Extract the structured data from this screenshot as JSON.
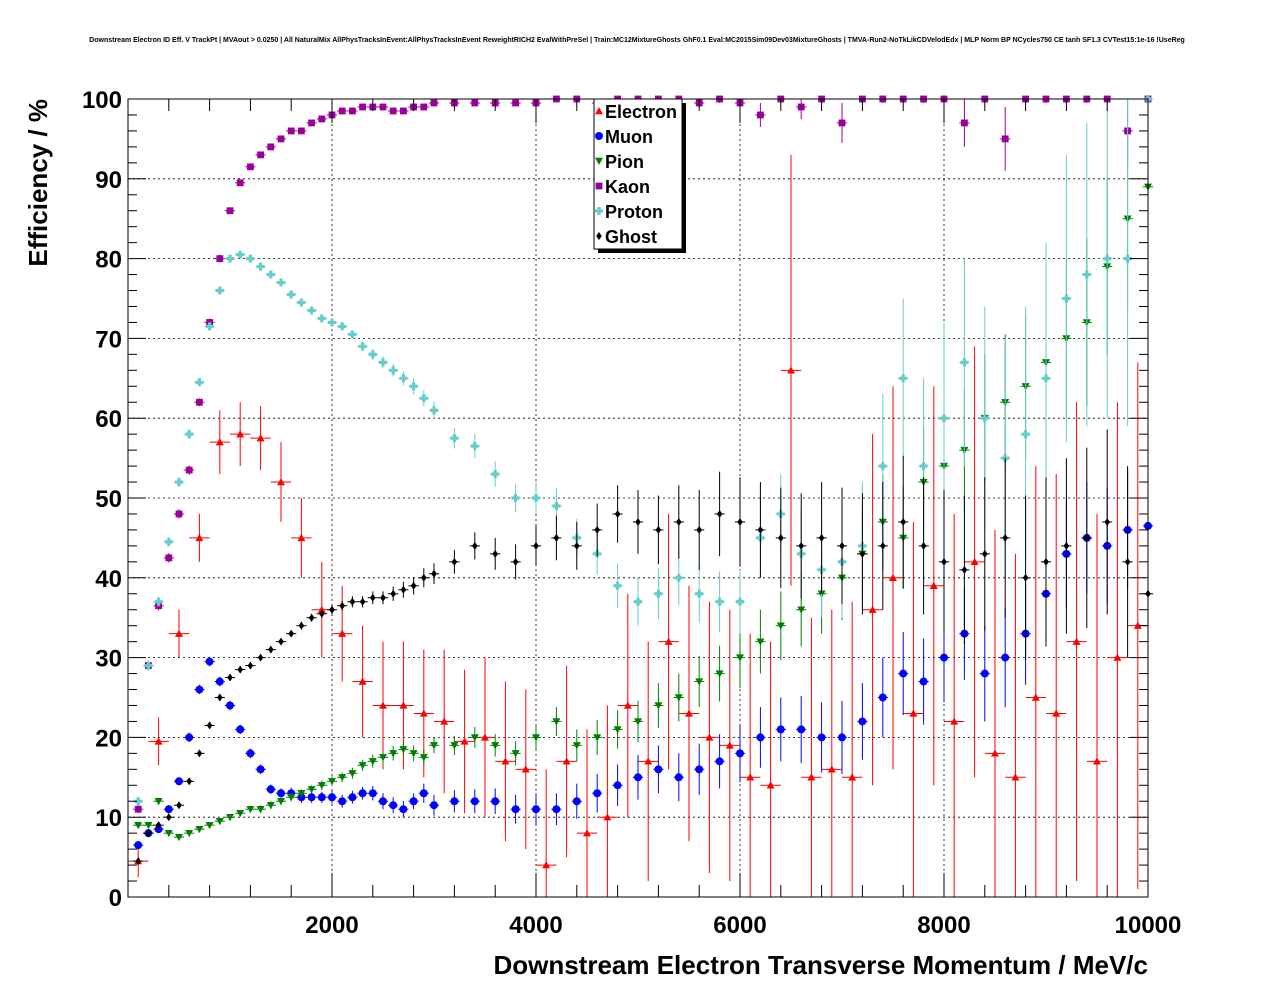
{
  "chart_data": {
    "type": "scatter",
    "title": "Downstream Electron ID Eff. V TrackPt | MVAout > 0.0250 | All NaturalMix AllPhysTracksInEvent:AllPhysTracksInEvent ReweightRICH2 EvalWithPreSel | Train:MC12MixtureGhosts GhF0.1 Eval:MC2015Sim09Dev03MixtureGhosts | TMVA-Run2-NoTkLikCDVelodEdx | MLP Norm BP NCycles750 CE tanh SF1.3 CVTest15:1e-16 !UseReg",
    "xlabel": "Downstream Electron Transverse Momentum / MeV/c",
    "ylabel": "Efficiency / %",
    "xlim": [
      0,
      10000
    ],
    "ylim": [
      0,
      100
    ],
    "x_ticks": [
      "2000",
      "4000",
      "6000",
      "8000",
      "10000"
    ],
    "y_ticks": [
      "0",
      "10",
      "20",
      "30",
      "40",
      "50",
      "60",
      "70",
      "80",
      "90",
      "100"
    ],
    "grid": true,
    "legend_position": "top-center",
    "series": [
      {
        "name": "Electron",
        "color": "#ff0000",
        "marker": "triangle-up",
        "x": [
          100,
          300,
          500,
          700,
          900,
          1100,
          1300,
          1500,
          1700,
          1900,
          2100,
          2300,
          2500,
          2700,
          2900,
          3100,
          3300,
          3500,
          3700,
          3900,
          4100,
          4300,
          4500,
          4700,
          4900,
          5100,
          5300,
          5500,
          5700,
          5900,
          6100,
          6300,
          6500,
          6700,
          6900,
          7100,
          7300,
          7500,
          7700,
          7900,
          8100,
          8300,
          8500,
          8700,
          8900,
          9100,
          9300,
          9500,
          9700,
          9900
        ],
        "y": [
          4.5,
          19.5,
          33,
          45,
          57,
          58,
          57.5,
          52,
          45,
          36,
          33,
          27,
          24,
          24,
          23,
          22,
          19.5,
          20,
          17,
          16,
          4,
          17,
          8,
          10,
          24,
          17,
          32,
          23,
          20,
          19,
          15,
          14,
          66,
          15,
          16,
          15,
          36,
          40,
          23,
          39,
          22,
          42,
          18,
          15,
          25,
          23,
          32,
          17,
          30,
          34
        ],
        "err": [
          2,
          3,
          3,
          3,
          4,
          4,
          4,
          5,
          5,
          6,
          6,
          7,
          8,
          8,
          8,
          9,
          9,
          10,
          10,
          10,
          12,
          12,
          13,
          14,
          14,
          15,
          16,
          16,
          17,
          17,
          18,
          18,
          27,
          20,
          20,
          22,
          22,
          24,
          24,
          25,
          26,
          27,
          28,
          28,
          29,
          30,
          30,
          31,
          32,
          33
        ]
      },
      {
        "name": "Muon",
        "color": "#0000ff",
        "marker": "circle",
        "x": [
          100,
          200,
          300,
          400,
          500,
          600,
          700,
          800,
          900,
          1000,
          1100,
          1200,
          1300,
          1400,
          1500,
          1600,
          1700,
          1800,
          1900,
          2000,
          2100,
          2200,
          2300,
          2400,
          2500,
          2600,
          2700,
          2800,
          2900,
          3000,
          3200,
          3400,
          3600,
          3800,
          4000,
          4200,
          4400,
          4600,
          4800,
          5000,
          5200,
          5400,
          5600,
          5800,
          6000,
          6200,
          6400,
          6600,
          6800,
          7000,
          7200,
          7400,
          7600,
          7800,
          8000,
          8200,
          8400,
          8600,
          8800,
          9000,
          9200,
          9400,
          9600,
          9800,
          10000
        ],
        "y": [
          6.5,
          8,
          8.5,
          11,
          14.5,
          20,
          26,
          29.5,
          27,
          24,
          21,
          18,
          16,
          13.5,
          13,
          13,
          12.5,
          12.5,
          12.5,
          12.5,
          12,
          12.5,
          13,
          13,
          12,
          11.5,
          11,
          12,
          13,
          11.5,
          12,
          12,
          12,
          11,
          11,
          11,
          12,
          13,
          14,
          15,
          16,
          15,
          16,
          17,
          18,
          20,
          21,
          21,
          20,
          20,
          22,
          25,
          28,
          27,
          30,
          33,
          28,
          30,
          33,
          38,
          43,
          45,
          44,
          46,
          46.5
        ],
        "err": [
          0.5,
          0.5,
          0.5,
          0.5,
          0.5,
          0.6,
          0.6,
          0.6,
          0.6,
          0.6,
          0.6,
          0.6,
          0.6,
          0.6,
          0.6,
          0.7,
          0.7,
          0.7,
          0.7,
          0.8,
          0.8,
          0.8,
          0.8,
          0.9,
          1,
          1,
          1,
          1,
          1.2,
          1.3,
          1.4,
          1.5,
          1.6,
          1.8,
          2,
          2,
          2.2,
          2.4,
          2.6,
          2.8,
          3,
          3,
          3.2,
          3.4,
          3.6,
          3.8,
          4,
          4.2,
          4.4,
          4.6,
          4.8,
          5,
          5.2,
          5.4,
          5.6,
          5.8,
          6,
          6.2,
          6.4,
          6.6,
          6.8,
          7,
          7.2,
          7.4,
          7.6
        ]
      },
      {
        "name": "Pion",
        "color": "#008000",
        "marker": "triangle-down",
        "x": [
          100,
          200,
          300,
          400,
          500,
          600,
          700,
          800,
          900,
          1000,
          1100,
          1200,
          1300,
          1400,
          1500,
          1600,
          1700,
          1800,
          1900,
          2000,
          2100,
          2200,
          2300,
          2400,
          2500,
          2600,
          2700,
          2800,
          2900,
          3000,
          3200,
          3400,
          3600,
          3800,
          4000,
          4200,
          4400,
          4600,
          4800,
          5000,
          5200,
          5400,
          5600,
          5800,
          6000,
          6200,
          6400,
          6600,
          6800,
          7000,
          7200,
          7400,
          7600,
          7800,
          8000,
          8200,
          8400,
          8600,
          8800,
          9000,
          9200,
          9400,
          9600,
          9800,
          10000
        ],
        "y": [
          9,
          9,
          12,
          8,
          7.5,
          8,
          8.5,
          9,
          9.5,
          10,
          10.5,
          11,
          11,
          11.5,
          12,
          12.5,
          13,
          13.5,
          14,
          14.5,
          15,
          15.5,
          16.5,
          17,
          17.5,
          18,
          18.5,
          18,
          17.5,
          19,
          19,
          20,
          19,
          18,
          20,
          22,
          19,
          20,
          21,
          22,
          24,
          25,
          27,
          28,
          30,
          32,
          34,
          36,
          38,
          40,
          43,
          47,
          45,
          52,
          54,
          56,
          60,
          62,
          64,
          67,
          70,
          72,
          79,
          85,
          89
        ],
        "err": [
          0.4,
          0.4,
          0.4,
          0.4,
          0.4,
          0.4,
          0.4,
          0.4,
          0.4,
          0.4,
          0.4,
          0.4,
          0.5,
          0.5,
          0.5,
          0.5,
          0.5,
          0.5,
          0.6,
          0.6,
          0.6,
          0.7,
          0.7,
          0.8,
          0.8,
          0.9,
          0.9,
          1,
          1,
          1,
          1.2,
          1.3,
          1.4,
          1.5,
          1.7,
          1.8,
          2,
          2.2,
          2.4,
          2.6,
          2.8,
          3,
          3.2,
          3.5,
          3.8,
          4,
          4.3,
          4.6,
          5,
          5.3,
          5.6,
          6,
          6.4,
          6.8,
          7.2,
          7.6,
          8,
          8.5,
          9,
          9.5,
          10,
          10.5,
          11,
          11.5,
          12
        ]
      },
      {
        "name": "Kaon",
        "color": "#990099",
        "marker": "square",
        "x": [
          100,
          200,
          300,
          400,
          500,
          600,
          700,
          800,
          900,
          1000,
          1100,
          1200,
          1300,
          1400,
          1500,
          1600,
          1700,
          1800,
          1900,
          2000,
          2100,
          2200,
          2300,
          2400,
          2500,
          2600,
          2700,
          2800,
          2900,
          3000,
          3200,
          3400,
          3600,
          3800,
          4000,
          4200,
          4400,
          4600,
          4800,
          5000,
          5200,
          5400,
          5600,
          5800,
          6000,
          6200,
          6400,
          6600,
          6800,
          7000,
          7200,
          7400,
          7600,
          7800,
          8000,
          8200,
          8400,
          8600,
          8800,
          9000,
          9200,
          9400,
          9600,
          9800,
          10000
        ],
        "y": [
          11,
          29,
          36.5,
          42.5,
          48,
          53.5,
          62,
          72,
          80,
          86,
          89.5,
          91.5,
          93,
          94,
          95,
          96,
          96,
          97,
          97.5,
          98,
          98.5,
          98.5,
          99,
          99,
          99,
          98.5,
          98.5,
          99,
          99,
          99.5,
          99.5,
          99.5,
          99.5,
          99.5,
          99.5,
          100,
          100,
          99.5,
          100,
          100,
          100,
          100,
          99.5,
          100,
          99.5,
          98,
          100,
          99,
          100,
          97,
          100,
          100,
          100,
          100,
          100,
          97,
          100,
          95,
          100,
          100,
          100,
          100,
          100,
          96,
          100
        ],
        "err": [
          0.5,
          0.6,
          0.6,
          0.6,
          0.6,
          0.6,
          0.5,
          0.5,
          0.5,
          0.4,
          0.4,
          0.4,
          0.4,
          0.4,
          0.4,
          0.4,
          0.4,
          0.4,
          0.4,
          0.4,
          0.3,
          0.3,
          0.3,
          0.3,
          0.3,
          0.4,
          0.4,
          0.4,
          0.4,
          0.3,
          0.3,
          0.3,
          0.3,
          0.3,
          0.3,
          0.3,
          0.3,
          0.5,
          0.3,
          0.3,
          0.3,
          0.3,
          0.5,
          0.5,
          0.8,
          1.5,
          0.5,
          1.5,
          0.5,
          2.5,
          0.5,
          0.5,
          0.5,
          0.5,
          0.5,
          3,
          0.5,
          4,
          0.5,
          0.5,
          0.5,
          0.5,
          0.5,
          4,
          0.5
        ]
      },
      {
        "name": "Proton",
        "color": "#66cccc",
        "marker": "cross",
        "x": [
          100,
          200,
          300,
          400,
          500,
          600,
          700,
          800,
          900,
          1000,
          1100,
          1200,
          1300,
          1400,
          1500,
          1600,
          1700,
          1800,
          1900,
          2000,
          2100,
          2200,
          2300,
          2400,
          2500,
          2600,
          2700,
          2800,
          2900,
          3000,
          3200,
          3400,
          3600,
          3800,
          4000,
          4200,
          4400,
          4600,
          4800,
          5000,
          5200,
          5400,
          5600,
          5800,
          6000,
          6200,
          6400,
          6600,
          6800,
          7000,
          7200,
          7400,
          7600,
          7800,
          8000,
          8200,
          8400,
          8600,
          8800,
          9000,
          9200,
          9400,
          9600,
          9800,
          10000
        ],
        "y": [
          12,
          29,
          37,
          44.5,
          52,
          58,
          64.5,
          71.5,
          76,
          80,
          80.5,
          80,
          79,
          78,
          77,
          75.5,
          74.5,
          73.5,
          72.5,
          72,
          71.5,
          70.5,
          69,
          68,
          67,
          66,
          65,
          64,
          62.5,
          61,
          57.5,
          56.5,
          53,
          50,
          50,
          49,
          45,
          43,
          39,
          37,
          38,
          40,
          38,
          37,
          37,
          45,
          48,
          43,
          41,
          42,
          44,
          54,
          65,
          54,
          60,
          67,
          60,
          55,
          58,
          65,
          75,
          78,
          80,
          80,
          100
        ],
        "err": [
          0.5,
          0.6,
          0.6,
          0.6,
          0.6,
          0.6,
          0.5,
          0.5,
          0.5,
          0.4,
          0.4,
          0.4,
          0.4,
          0.4,
          0.4,
          0.4,
          0.4,
          0.4,
          0.5,
          0.5,
          0.5,
          0.5,
          0.6,
          0.7,
          0.7,
          0.8,
          0.9,
          1,
          1,
          1.1,
          1.3,
          1.5,
          1.6,
          1.8,
          2,
          2.2,
          2.4,
          2.6,
          2.8,
          3,
          3.2,
          3.4,
          3.6,
          3.8,
          4,
          4.5,
          5,
          5.5,
          6,
          7,
          8,
          9,
          10,
          11,
          12,
          13,
          14,
          15,
          16,
          17,
          18,
          19,
          20,
          21,
          5
        ]
      },
      {
        "name": "Ghost",
        "color": "#000000",
        "marker": "diamond",
        "x": [
          100,
          200,
          300,
          400,
          500,
          600,
          700,
          800,
          900,
          1000,
          1100,
          1200,
          1300,
          1400,
          1500,
          1600,
          1700,
          1800,
          1900,
          2000,
          2100,
          2200,
          2300,
          2400,
          2500,
          2600,
          2700,
          2800,
          2900,
          3000,
          3200,
          3400,
          3600,
          3800,
          4000,
          4200,
          4400,
          4600,
          4800,
          5000,
          5200,
          5400,
          5600,
          5800,
          6000,
          6200,
          6400,
          6600,
          6800,
          7000,
          7200,
          7400,
          7600,
          7800,
          8000,
          8200,
          8400,
          8600,
          8800,
          9000,
          9200,
          9400,
          9600,
          9800,
          10000
        ],
        "y": [
          4.5,
          8,
          9,
          10,
          11.5,
          14.5,
          18,
          21.5,
          25,
          27.5,
          28.5,
          29,
          30,
          31,
          32,
          33,
          34,
          35,
          35.5,
          36,
          36.5,
          37,
          37,
          37.5,
          37.5,
          38,
          38.5,
          39,
          40,
          40.5,
          42,
          44,
          43,
          42,
          44,
          45,
          44,
          46,
          48,
          47,
          46,
          47,
          46,
          48,
          47,
          46,
          45,
          44,
          45,
          44,
          43,
          44,
          47,
          44,
          42,
          41,
          43,
          45,
          40,
          42,
          44,
          45,
          47,
          42,
          38
        ],
        "err": [
          0.4,
          0.4,
          0.4,
          0.4,
          0.4,
          0.4,
          0.4,
          0.4,
          0.4,
          0.4,
          0.4,
          0.4,
          0.4,
          0.4,
          0.4,
          0.4,
          0.5,
          0.5,
          0.5,
          0.6,
          0.6,
          0.7,
          0.7,
          0.8,
          0.8,
          0.9,
          1,
          1.1,
          1.2,
          1.3,
          1.5,
          1.7,
          2,
          2.2,
          2.5,
          2.8,
          3,
          3.3,
          3.6,
          4,
          4.3,
          4.6,
          5,
          5.3,
          5.6,
          6,
          6.3,
          6.6,
          7,
          7.3,
          7.6,
          8,
          8.3,
          8.6,
          9,
          9.3,
          9.6,
          10,
          10.3,
          10.6,
          11,
          11.3,
          11.6,
          12,
          12.3
        ]
      }
    ]
  }
}
